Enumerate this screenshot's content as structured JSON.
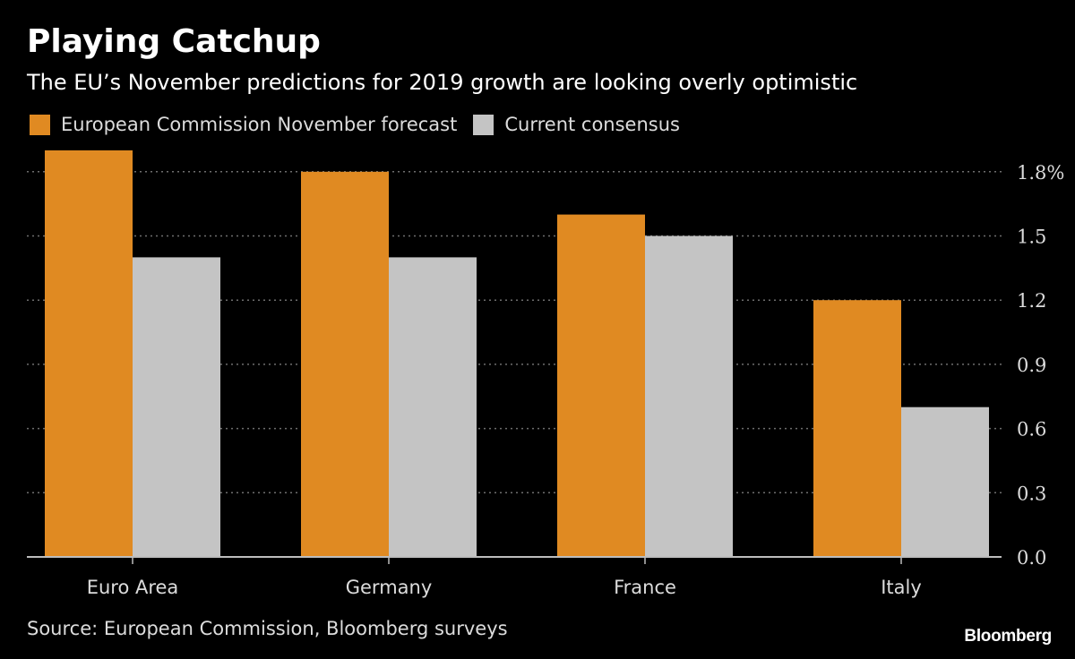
{
  "title": "Playing Catchup",
  "subtitle": "The EU’s November predictions for 2019 growth are looking overly optimistic",
  "source": "Source: European Commission, Bloomberg surveys",
  "brand": "Bloomberg",
  "colors": {
    "forecast": "#e08a22",
    "consensus": "#c4c4c4",
    "grid": "#6e6e6e",
    "axis": "#bdbdbd",
    "tick_label": "#dcdcdc"
  },
  "chart_data": {
    "type": "bar",
    "categories": [
      "Euro Area",
      "Germany",
      "France",
      "Italy"
    ],
    "series": [
      {
        "name": "European Commission November forecast",
        "values": [
          1.9,
          1.8,
          1.6,
          1.2
        ]
      },
      {
        "name": "Current consensus",
        "values": [
          1.4,
          1.4,
          1.5,
          0.7
        ]
      }
    ],
    "ylim": [
      0,
      1.9
    ],
    "yticks": [
      {
        "value": 0,
        "label": "0.0"
      },
      {
        "value": 0.3,
        "label": "0.3"
      },
      {
        "value": 0.6,
        "label": "0.6"
      },
      {
        "value": 0.9,
        "label": "0.9"
      },
      {
        "value": 1.2,
        "label": "1.2"
      },
      {
        "value": 1.5,
        "label": "1.5"
      },
      {
        "value": 1.8,
        "label": "1.8%"
      }
    ],
    "grid": true,
    "legend_position": "top-left",
    "y_axis_position": "right"
  }
}
